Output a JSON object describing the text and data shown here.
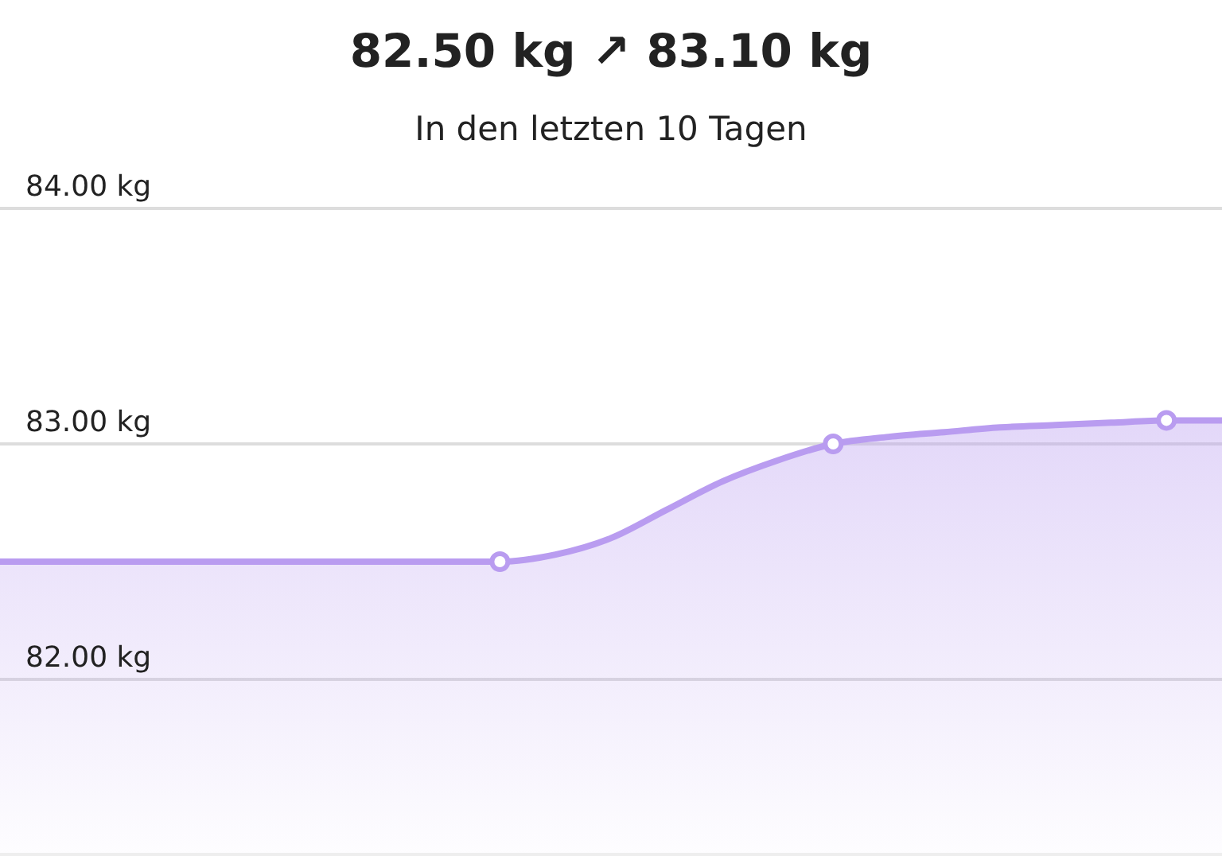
{
  "chart_data": {
    "type": "area",
    "title": "82.50 kg ↗ 83.10 kg",
    "subtitle": "In den letzten 10 Tagen",
    "categories": [
      null,
      null,
      null,
      null,
      null,
      null,
      null,
      null,
      null,
      null,
      null,
      null,
      null,
      null,
      null,
      null,
      null,
      null,
      null,
      null,
      null,
      null,
      null
    ],
    "ylim": [
      81.25,
      84
    ],
    "yticks": [
      {
        "value": 82,
        "label": "82.00 kg"
      },
      {
        "value": 83,
        "label": "83.00 kg"
      },
      {
        "value": 84,
        "label": "84.00 kg"
      }
    ],
    "grid": "y",
    "tick_labels": "y",
    "series": [
      {
        "color": "#b99cf0",
        "values": [
          82.5,
          82.5,
          82.5,
          82.5,
          82.5,
          82.5,
          82.5,
          82.5,
          82.5,
          82.5,
          82.53,
          82.6,
          82.72,
          82.84,
          82.93,
          83.0,
          83.03,
          83.05,
          83.07,
          83.08,
          83.09,
          83.1,
          83.1
        ],
        "marker": "none"
      },
      {
        "type": "scatter",
        "color": "#b99cf0",
        "values": [
          null,
          null,
          null,
          null,
          null,
          null,
          null,
          null,
          null,
          82.5,
          null,
          null,
          null,
          null,
          null,
          83.0,
          null,
          null,
          null,
          null,
          null,
          83.1,
          null
        ],
        "marker": "circle"
      }
    ]
  }
}
